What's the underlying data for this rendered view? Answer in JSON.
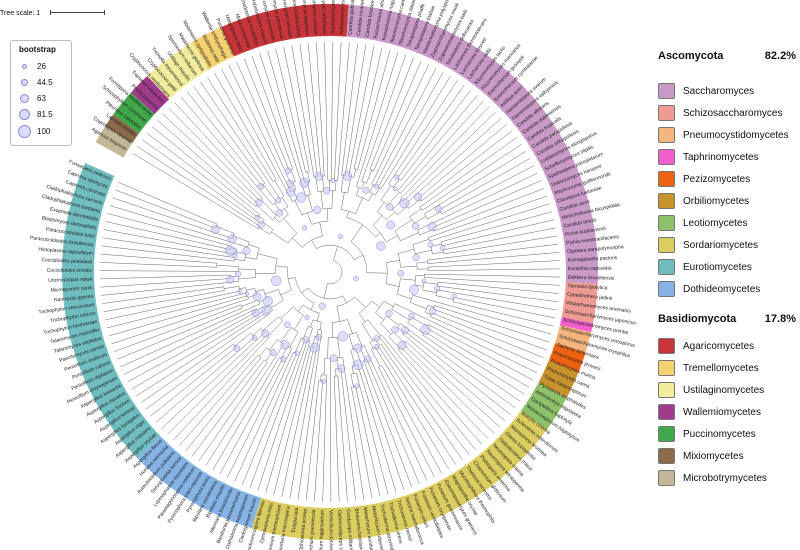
{
  "tree_scale": {
    "label": "Tree scale: 1"
  },
  "bootstrap_legend": {
    "title": "bootstrap",
    "values": [
      "26",
      "44.5",
      "63",
      "81.5",
      "100"
    ]
  },
  "phyla": [
    {
      "name": "Ascomycota",
      "percent": "82.2%",
      "classes": [
        {
          "name": "Saccharomyces",
          "color": "#c99ac8"
        },
        {
          "name": "Schizosaccharomyces",
          "color": "#ee9b94"
        },
        {
          "name": "Pneumocystidomycetes",
          "color": "#f6b57e"
        },
        {
          "name": "Taphrinomycetes",
          "color": "#f05fcb"
        },
        {
          "name": "Pezizomycetes",
          "color": "#ee6312"
        },
        {
          "name": "Orbiliomycetes",
          "color": "#c8922c"
        },
        {
          "name": "Leotiomycetes",
          "color": "#8dc26a"
        },
        {
          "name": "Sordariomycetes",
          "color": "#dccd60"
        },
        {
          "name": "Eurotiomycetes",
          "color": "#6fbdbf"
        },
        {
          "name": "Dothideomycetes",
          "color": "#86b3e6"
        }
      ]
    },
    {
      "name": "Basidiomycota",
      "percent": "17.8%",
      "classes": [
        {
          "name": "Agaricomycetes",
          "color": "#c7343a"
        },
        {
          "name": "Tremellomycetes",
          "color": "#f4d06e"
        },
        {
          "name": "Ustilaginomycetes",
          "color": "#f2ed9c"
        },
        {
          "name": "Wallemiomycetes",
          "color": "#a03b8c"
        },
        {
          "name": "Puccinomycetes",
          "color": "#3ea84a"
        },
        {
          "name": "Mixiomycetes",
          "color": "#8a6a4a"
        },
        {
          "name": "Microbotrymycetes",
          "color": "#c2b898"
        }
      ]
    }
  ],
  "tip_labels": [
    "Agaricus bisporus",
    "Coprinopsis cinerea",
    "Laccaria bicolor",
    "Pleurotus ostreatus",
    "Schizophyllum commune",
    "Fomitiporia mediterranea",
    "Postia placenta",
    "Trametes versicolor",
    "Cryptococcus neoformans",
    "Cryptococcus gattii",
    "Tremella mesenterica",
    "Ustilago maydis",
    "Sporisorium reilianum",
    "Malassezia globosa",
    "Malassezia sympodialis",
    "Wallemia sebi",
    "Wallemia ichthyophaga",
    "Puccinia graminis",
    "Melampsora larici",
    "Mixia osmundae",
    "Rhodotorula toruloides",
    "Sporobolomyces roseus",
    "Saccharomyces cerevisiae",
    "Saccharomyces paradoxus",
    "Saccharomyces mikatae",
    "Saccharomyces kudriavzevii",
    "Saccharomyces bayanus",
    "Saccharomyces uvarum",
    "Saccharomyces arboricola",
    "Saccharomyces eubayanus",
    "Nakaseomyces delphensis",
    "Candida glabrata",
    "Candida nivariensis",
    "Candida bracarensis",
    "Kazachstania africana",
    "Kazachstania naganishii",
    "Naumovozyma castellii",
    "Naumovozyma dairenensis",
    "Tetrapisispora phaffii",
    "Tetrapisispora blattae",
    "Vanderwaltozyma polyspora",
    "Zygosaccharomyces rouxii",
    "Zygosaccharomyces bailii",
    "Torulaspora delbrueckii",
    "Lachancea thermotolerans",
    "Lachancea kluyveri",
    "Lachancea waltii",
    "Kluyveromyces lactis",
    "Kluyveromyces marxianus",
    "Eremothecium gossypii",
    "Eremothecium cymbalariae",
    "Ashbya aceri",
    "Hanseniaspora uvarum",
    "Hanseniaspora valbyensis",
    "Candida albicans",
    "Candida dubliniensis",
    "Candida tropicalis",
    "Candida parapsilosis",
    "Candida orthopsilosis",
    "Lodderomyces elongisporus",
    "Scheffersomyces stipitis",
    "Spathaspora passalidarum",
    "Debaryomyces hansenii",
    "Meyerozyma guilliermondii",
    "Clavispora lusitaniae",
    "Candida auris",
    "Metschnikowia bicuspidata",
    "Candida tenuis",
    "Pichia kudriavzevii",
    "Pichia membranifaciens",
    "Ogataea parapolymorpha",
    "Komagataella pastoris",
    "Kuraishia capsulata",
    "Dekkera bruxellensis",
    "Yarrowia lipolytica",
    "Cyberlindnera jadinii",
    "Wickerhamomyces anomalus",
    "Schizosaccharomyces japonicus",
    "Schizosaccharomyces pombe",
    "Schizosaccharomyces octosporus",
    "Schizosaccharomyces cryophilus",
    "Taphrina deformans",
    "Pneumocystis jirovecii",
    "Pneumocystis murina",
    "Pneumocystis carinii",
    "Tuber melanosporum",
    "Pyronema omphalodes",
    "Arthrobotrys oligospora",
    "Dactylellina haptotyla",
    "Monacrosporium haptotylum",
    "Botrytis cinerea",
    "Sclerotinia sclerotiorum",
    "Marssonina brunnea",
    "Glarea lozoyensis",
    "Oidiodendron maius",
    "Neurospora crassa",
    "Neurospora tetrasperma",
    "Podospora anserina",
    "Chaetomium globosum",
    "Thielavia terrestris",
    "Myceliophthora thermophila",
    "Magnaporthe oryzae",
    "Gaeumannomyces graminis",
    "Fusarium graminearum",
    "Fusarium oxysporum",
    "Fusarium verticillioides",
    "Fusarium solani",
    "Nectria haematococca",
    "Trichoderma reesei",
    "Trichoderma virens",
    "Trichoderma atroviride",
    "Metarhizium robertsii",
    "Metarhizium acridum",
    "Beauveria bassiana",
    "Cordyceps militaris",
    "Ophiocordyceps sinensis",
    "Verticillium dahliae",
    "Colletotrichum higginsianum",
    "Colletotrichum graminicola",
    "Ophiostoma piceae",
    "Eutypa lata",
    "Sordaria macrospora",
    "Chaetomium thermophilum",
    "Zymoseptoria tritici",
    "Pseudocercospora fijiensis",
    "Cladosporium fulvum",
    "Dothistroma septosporum",
    "Baudoinia panamericana",
    "Alternaria brassicicola",
    "Bipolaris maydis",
    "Bipolaris sorokiniana",
    "Pyrenophora teres",
    "Pyrenophora tritici-repentis",
    "Parastagonospora nodorum",
    "Leptosphaeria maculans",
    "Setosphaeria turcica",
    "Aureobasidium pullulans",
    "Hortaea werneckii",
    "Aspergillus flavus",
    "Aspergillus oryzae",
    "Aspergillus nidulans",
    "Aspergillus niger",
    "Aspergillus fumigatus",
    "Aspergillus terreus",
    "Aspergillus fischeri",
    "Aspergillus clavatus",
    "Aspergillus kawachii",
    "Penicillium chrysogenum",
    "Penicillium digitatum",
    "Penicillium rubens",
    "Penicillium oxalicum",
    "Paecilomyces variotii",
    "Talaromyces stipitatus",
    "Talaromyces marneffei",
    "Trichophyton benhamiae",
    "Trichophyton rubrum",
    "Trichophyton verrucosum",
    "Nannizzia gypsea",
    "Microsporum canis",
    "Uncinocarpus reesii",
    "Coccidioides immitis",
    "Coccidioides posadasii",
    "Histoplasma capsulatum",
    "Paracoccidioides brasiliensis",
    "Paracoccidioides lutzii",
    "Blastomyces dermatitidis",
    "Exophiala dermatitidis",
    "Cladophialophora bantiana",
    "Cladophialophora carrionii",
    "Capronia coronata",
    "Capronia epimyces",
    "Fonsecaea pedrosoi"
  ]
}
